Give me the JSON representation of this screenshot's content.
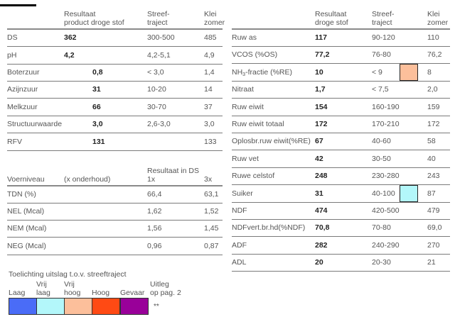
{
  "left_table": {
    "headers": {
      "result_line1": "Resultaat",
      "result_line2": "product droge stof",
      "streef_line1": "Streef-",
      "streef_line2": "traject",
      "klei_line1": "Klei",
      "klei_line2": "zomer"
    },
    "rows": [
      {
        "label": "DS",
        "result": "362",
        "indent": false,
        "streef": "300-500",
        "klei": "485"
      },
      {
        "label": "pH",
        "result": "4,2",
        "indent": false,
        "streef": "4,2-5,1",
        "klei": "4,9"
      },
      {
        "label": "Boterzuur",
        "result": "0,8",
        "indent": true,
        "streef": "< 3,0",
        "klei": "1,4"
      },
      {
        "label": "Azijnzuur",
        "result": "31",
        "indent": true,
        "streef": "10-20",
        "klei": "14"
      },
      {
        "label": "Melkzuur",
        "result": "66",
        "indent": true,
        "streef": "30-70",
        "klei": "37"
      },
      {
        "label": "Structuurwaarde",
        "result": "3,0",
        "indent": true,
        "streef": "2,6-3,0",
        "klei": "3,0"
      },
      {
        "label": "RFV",
        "result": "131",
        "indent": true,
        "streef": "",
        "klei": "133"
      }
    ]
  },
  "feed_table": {
    "headers": {
      "label": "Voerniveau",
      "sublabel": "(x onderhoud)",
      "group": "Resultaat in DS",
      "col1": "1x",
      "col2": "3x"
    },
    "rows": [
      {
        "label": "TDN (%)",
        "v1": "66,4",
        "v3": "63,1"
      },
      {
        "label": "NEL (Mcal)",
        "v1": "1,62",
        "v3": "1,52"
      },
      {
        "label": "NEM (Mcal)",
        "v1": "1,56",
        "v3": "1,45"
      },
      {
        "label": "NEG (Mcal)",
        "v1": "0,96",
        "v3": "0,87"
      }
    ]
  },
  "right_table": {
    "headers": {
      "result_line1": "Resultaat",
      "result_line2": "droge stof",
      "streef_line1": "Streef-",
      "streef_line2": "traject",
      "klei_line1": "Klei",
      "klei_line2": "zomer"
    },
    "rows": [
      {
        "label": "Ruw as",
        "result": "117",
        "streef": "90-120",
        "klei": "110",
        "marker": ""
      },
      {
        "label": "VCOS (%OS)",
        "result": "77,2",
        "streef": "76-80",
        "klei": "76,2",
        "marker": ""
      },
      {
        "label_pre": "NH",
        "label_sub": "3",
        "label_post": "-fractie (%RE)",
        "result": "10",
        "streef": "< 9",
        "klei": "8",
        "marker": "Vrij hoog"
      },
      {
        "label": "Nitraat",
        "result": "1,7",
        "streef": "< 7,5",
        "klei": "2,0",
        "marker": ""
      },
      {
        "label": "Ruw eiwit",
        "result": "154",
        "streef": "160-190",
        "klei": "159",
        "marker": ""
      },
      {
        "label": "Ruw eiwit totaal",
        "result": "172",
        "streef": "170-210",
        "klei": "172",
        "marker": ""
      },
      {
        "label": "Oplosbr.ruw eiwit(%RE)",
        "result": "67",
        "streef": "40-60",
        "klei": "58",
        "marker": ""
      },
      {
        "label": "Ruw vet",
        "result": "42",
        "streef": "30-50",
        "klei": "40",
        "marker": ""
      },
      {
        "label": "Ruwe celstof",
        "result": "248",
        "streef": "230-280",
        "klei": "243",
        "marker": ""
      },
      {
        "label": "Suiker",
        "result": "31",
        "streef": "40-100",
        "klei": "87",
        "marker": "Vrij laag"
      },
      {
        "label": "NDF",
        "result": "474",
        "streef": "420-500",
        "klei": "479",
        "marker": ""
      },
      {
        "label": "NDFvert.br.hd(%NDF)",
        "result": "70,8",
        "streef": "70-80",
        "klei": "69,0",
        "marker": ""
      },
      {
        "label": "ADF",
        "result": "282",
        "streef": "240-290",
        "klei": "270",
        "marker": ""
      },
      {
        "label": "ADL",
        "result": "20",
        "streef": "20-30",
        "klei": "21",
        "marker": ""
      }
    ]
  },
  "legend": {
    "title": "Toelichting uitslag t.o.v. streeftraject",
    "items": [
      {
        "line1": "",
        "line2": "Laag",
        "color": "#4a6cf7"
      },
      {
        "line1": "Vrij",
        "line2": "laag",
        "color": "#b3f7fa"
      },
      {
        "line1": "Vrij",
        "line2": "hoog",
        "color": "#fcbf9b"
      },
      {
        "line1": "",
        "line2": "Hoog",
        "color": "#ff4a14"
      },
      {
        "line1": "",
        "line2": "Gevaar",
        "color": "#990099"
      }
    ],
    "note_line1": "Uitleg",
    "note_line2": "op pag. 2",
    "note_marker": "**"
  },
  "colors": {
    "vrij_hoog": "#fcbf9b",
    "vrij_laag": "#b3f7fa"
  }
}
